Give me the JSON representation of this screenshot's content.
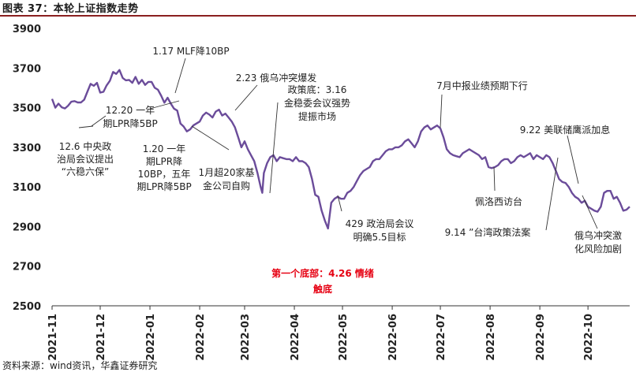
{
  "header": {
    "title": "图表 37：本轮上证指数走势"
  },
  "footer": {
    "source": "资料来源：wind资讯，华鑫证券研究"
  },
  "chart_data": {
    "type": "line",
    "title": "本轮上证指数走势",
    "ylim": [
      2500,
      3900
    ],
    "yticks": [
      2500,
      2700,
      2900,
      3100,
      3300,
      3500,
      3700,
      3900
    ],
    "xlim": [
      0,
      360
    ],
    "xticks": [
      {
        "label": "2021-11",
        "t": 0
      },
      {
        "label": "2021-12",
        "t": 30
      },
      {
        "label": "2022-01",
        "t": 61
      },
      {
        "label": "2022-02",
        "t": 92
      },
      {
        "label": "2022-03",
        "t": 120
      },
      {
        "label": "2022-04",
        "t": 151
      },
      {
        "label": "2022-05",
        "t": 181
      },
      {
        "label": "2022-06",
        "t": 212
      },
      {
        "label": "2022-07",
        "t": 242
      },
      {
        "label": "2022-08",
        "t": 273
      },
      {
        "label": "2022-09",
        "t": 304
      },
      {
        "label": "2022-10",
        "t": 334
      }
    ],
    "series": [
      {
        "name": "上证指数",
        "color": "#6b4c9a",
        "points": [
          [
            0,
            3544
          ],
          [
            2,
            3500
          ],
          [
            4,
            3520
          ],
          [
            6,
            3502
          ],
          [
            8,
            3496
          ],
          [
            10,
            3510
          ],
          [
            12,
            3530
          ],
          [
            14,
            3533
          ],
          [
            16,
            3526
          ],
          [
            18,
            3526
          ],
          [
            20,
            3540
          ],
          [
            22,
            3580
          ],
          [
            24,
            3620
          ],
          [
            26,
            3610
          ],
          [
            28,
            3625
          ],
          [
            30,
            3576
          ],
          [
            32,
            3580
          ],
          [
            34,
            3612
          ],
          [
            36,
            3635
          ],
          [
            38,
            3680
          ],
          [
            40,
            3670
          ],
          [
            42,
            3690
          ],
          [
            44,
            3650
          ],
          [
            46,
            3638
          ],
          [
            48,
            3640
          ],
          [
            50,
            3625
          ],
          [
            52,
            3655
          ],
          [
            54,
            3620
          ],
          [
            56,
            3640
          ],
          [
            58,
            3615
          ],
          [
            60,
            3630
          ],
          [
            62,
            3630
          ],
          [
            64,
            3600
          ],
          [
            66,
            3590
          ],
          [
            68,
            3560
          ],
          [
            70,
            3525
          ],
          [
            72,
            3550
          ],
          [
            74,
            3520
          ],
          [
            76,
            3495
          ],
          [
            78,
            3485
          ],
          [
            80,
            3420
          ],
          [
            82,
            3405
          ],
          [
            84,
            3380
          ],
          [
            86,
            3390
          ],
          [
            88,
            3410
          ],
          [
            92,
            3430
          ],
          [
            94,
            3460
          ],
          [
            96,
            3475
          ],
          [
            98,
            3465
          ],
          [
            100,
            3450
          ],
          [
            102,
            3480
          ],
          [
            104,
            3490
          ],
          [
            106,
            3460
          ],
          [
            108,
            3470
          ],
          [
            110,
            3450
          ],
          [
            112,
            3430
          ],
          [
            114,
            3400
          ],
          [
            116,
            3350
          ],
          [
            118,
            3300
          ],
          [
            120,
            3330
          ],
          [
            122,
            3290
          ],
          [
            124,
            3260
          ],
          [
            126,
            3230
          ],
          [
            128,
            3170
          ],
          [
            130,
            3100
          ],
          [
            131,
            3070
          ],
          [
            132,
            3170
          ],
          [
            134,
            3220
          ],
          [
            136,
            3250
          ],
          [
            138,
            3260
          ],
          [
            140,
            3230
          ],
          [
            142,
            3250
          ],
          [
            144,
            3245
          ],
          [
            146,
            3240
          ],
          [
            148,
            3240
          ],
          [
            150,
            3230
          ],
          [
            152,
            3250
          ],
          [
            154,
            3230
          ],
          [
            156,
            3230
          ],
          [
            158,
            3220
          ],
          [
            160,
            3200
          ],
          [
            162,
            3140
          ],
          [
            164,
            3060
          ],
          [
            166,
            3050
          ],
          [
            168,
            2980
          ],
          [
            170,
            2930
          ],
          [
            172,
            2890
          ],
          [
            174,
            3020
          ],
          [
            176,
            3040
          ],
          [
            178,
            3050
          ],
          [
            180,
            3040
          ],
          [
            182,
            3040
          ],
          [
            184,
            3070
          ],
          [
            186,
            3080
          ],
          [
            188,
            3100
          ],
          [
            190,
            3130
          ],
          [
            192,
            3160
          ],
          [
            194,
            3180
          ],
          [
            196,
            3190
          ],
          [
            198,
            3200
          ],
          [
            200,
            3230
          ],
          [
            202,
            3240
          ],
          [
            204,
            3240
          ],
          [
            206,
            3260
          ],
          [
            208,
            3280
          ],
          [
            210,
            3290
          ],
          [
            212,
            3290
          ],
          [
            214,
            3300
          ],
          [
            216,
            3300
          ],
          [
            218,
            3310
          ],
          [
            220,
            3330
          ],
          [
            222,
            3340
          ],
          [
            224,
            3320
          ],
          [
            226,
            3300
          ],
          [
            228,
            3330
          ],
          [
            230,
            3380
          ],
          [
            232,
            3400
          ],
          [
            234,
            3410
          ],
          [
            236,
            3390
          ],
          [
            238,
            3400
          ],
          [
            240,
            3410
          ],
          [
            242,
            3395
          ],
          [
            244,
            3350
          ],
          [
            246,
            3290
          ],
          [
            248,
            3270
          ],
          [
            250,
            3260
          ],
          [
            252,
            3255
          ],
          [
            254,
            3250
          ],
          [
            256,
            3270
          ],
          [
            258,
            3280
          ],
          [
            260,
            3290
          ],
          [
            262,
            3280
          ],
          [
            264,
            3270
          ],
          [
            266,
            3260
          ],
          [
            268,
            3240
          ],
          [
            270,
            3250
          ],
          [
            272,
            3200
          ],
          [
            274,
            3195
          ],
          [
            276,
            3200
          ],
          [
            278,
            3210
          ],
          [
            280,
            3230
          ],
          [
            282,
            3240
          ],
          [
            284,
            3240
          ],
          [
            286,
            3220
          ],
          [
            288,
            3230
          ],
          [
            290,
            3250
          ],
          [
            292,
            3260
          ],
          [
            294,
            3250
          ],
          [
            296,
            3260
          ],
          [
            298,
            3270
          ],
          [
            300,
            3240
          ],
          [
            302,
            3260
          ],
          [
            304,
            3250
          ],
          [
            306,
            3240
          ],
          [
            308,
            3260
          ],
          [
            310,
            3250
          ],
          [
            312,
            3220
          ],
          [
            314,
            3180
          ],
          [
            316,
            3140
          ],
          [
            318,
            3125
          ],
          [
            320,
            3120
          ],
          [
            322,
            3100
          ],
          [
            324,
            3070
          ],
          [
            326,
            3050
          ],
          [
            328,
            3040
          ],
          [
            330,
            3020
          ],
          [
            332,
            3030
          ],
          [
            334,
            3000
          ],
          [
            336,
            2990
          ],
          [
            338,
            2980
          ],
          [
            340,
            2975
          ],
          [
            342,
            3000
          ],
          [
            344,
            3070
          ],
          [
            346,
            3080
          ],
          [
            348,
            3080
          ],
          [
            350,
            3040
          ],
          [
            352,
            3050
          ],
          [
            354,
            3020
          ],
          [
            356,
            2980
          ],
          [
            358,
            2985
          ],
          [
            360,
            3000
          ]
        ]
      }
    ],
    "annotations": [
      {
        "lines": [
          "1.17 MLF降10BP"
        ],
        "color": "#222222"
      },
      {
        "lines": [
          "12.20 一年",
          "期LPR降5BP"
        ],
        "color": "#222222"
      },
      {
        "lines": [
          "12.6 中央政",
          "治局会议提出",
          "“六稳六保”"
        ],
        "color": "#222222"
      },
      {
        "lines": [
          "1.20 一年",
          "期LPR降",
          "10BP，五年",
          "期LPR降5BP"
        ],
        "color": "#222222"
      },
      {
        "lines": [
          "1月超20家基",
          "金公司自购"
        ],
        "color": "#222222"
      },
      {
        "lines": [
          "2.23 俄乌冲突爆发"
        ],
        "color": "#222222"
      },
      {
        "lines": [
          "政策底：3.16",
          "金稳委会议强势",
          "提振市场"
        ],
        "color": "#222222"
      },
      {
        "lines": [
          "429 政治局会议",
          "明确5.5目标"
        ],
        "color": "#222222"
      },
      {
        "lines": [
          "第一个底部：4.26 情绪",
          "触底"
        ],
        "color": "#e60012"
      },
      {
        "lines": [
          "7月中报业绩预期下行"
        ],
        "color": "#222222"
      },
      {
        "lines": [
          "佩洛西访台"
        ],
        "color": "#222222"
      },
      {
        "lines": [
          "9.22  美联储鹰派加息"
        ],
        "color": "#222222"
      },
      {
        "lines": [
          "9.14 ”台湾政策法案"
        ],
        "color": "#222222"
      },
      {
        "lines": [
          "俄乌冲突激",
          "化风险加剧"
        ],
        "color": "#222222"
      }
    ]
  }
}
